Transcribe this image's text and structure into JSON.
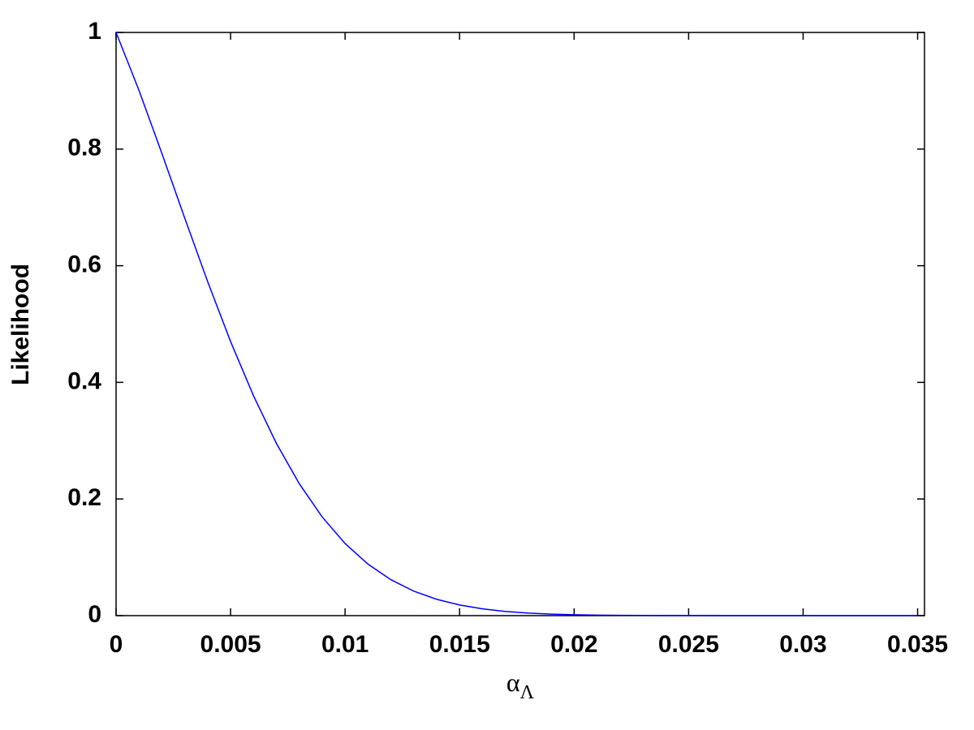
{
  "chart_data": {
    "type": "line",
    "xlabel": "α",
    "xlabel_subscript": "Λ",
    "ylabel": "Likelihood",
    "x": [
      0,
      0.001,
      0.002,
      0.003,
      0.004,
      0.005,
      0.006,
      0.007,
      0.008,
      0.009,
      0.01,
      0.011,
      0.012,
      0.013,
      0.014,
      0.015,
      0.016,
      0.017,
      0.018,
      0.019,
      0.02,
      0.021,
      0.022,
      0.023,
      0.024,
      0.025,
      0.03,
      0.035
    ],
    "series": [
      {
        "color": "#0000ff",
        "values": [
          1,
          0.9007,
          0.7926,
          0.6815,
          0.5726,
          0.47,
          0.377,
          0.2954,
          0.2262,
          0.1692,
          0.1237,
          0.0883,
          0.0616,
          0.042,
          0.028,
          0.0182,
          0.0116,
          0.0072,
          0.0044,
          0.0026,
          0.0015,
          0.0009,
          0.0005,
          0.0003,
          0.0001,
          0.0001,
          0,
          0
        ]
      }
    ],
    "xlim": [
      0,
      0.0353
    ],
    "ylim": [
      0,
      1
    ],
    "xticks": [
      0,
      0.005,
      0.01,
      0.015,
      0.02,
      0.025,
      0.03,
      0.035
    ],
    "yticks": [
      0,
      0.2,
      0.4,
      0.6,
      0.8,
      1
    ],
    "grid": false
  }
}
